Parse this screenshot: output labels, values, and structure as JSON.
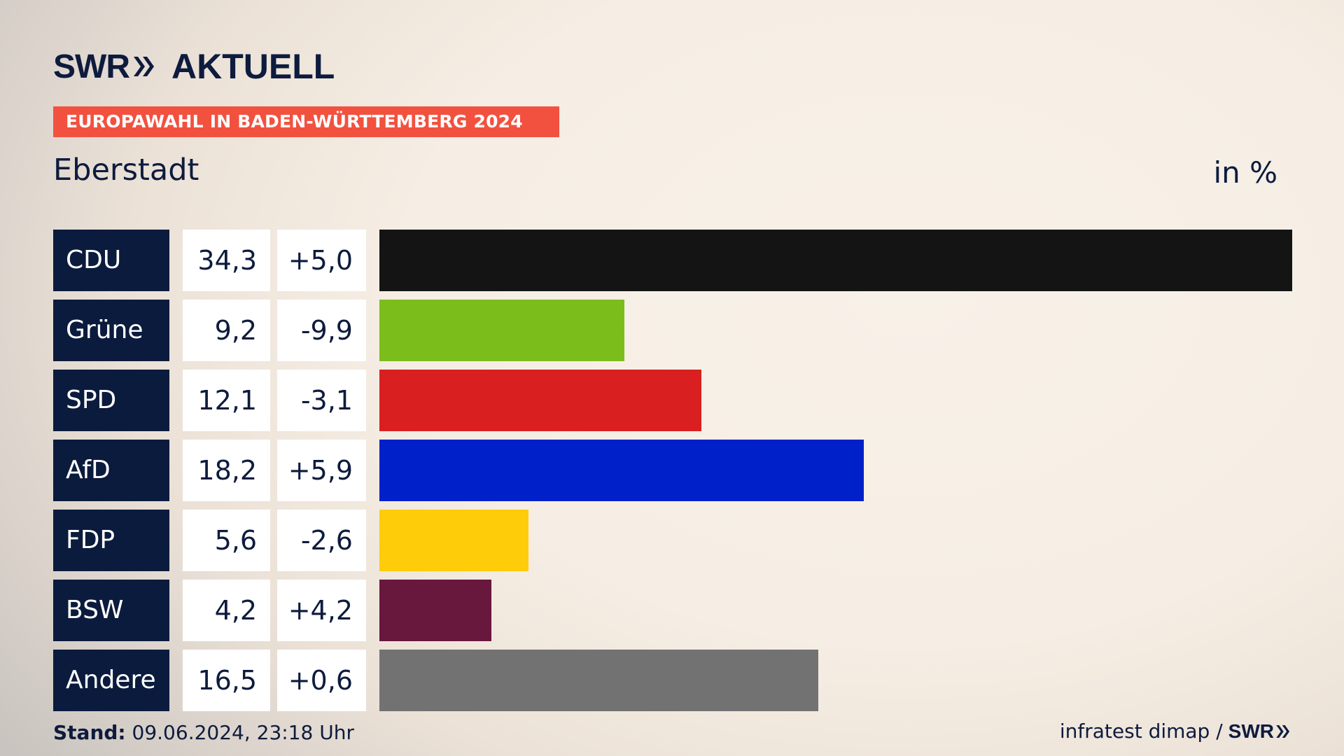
{
  "header": {
    "brand": "SWR",
    "brand_product": "AKTUELL",
    "banner": "EUROPAWAHL IN BADEN-WÜRTTEMBERG 2024",
    "place": "Eberstadt",
    "unit": "in %"
  },
  "footer": {
    "stand_label": "Stand:",
    "stand_value": "09.06.2024, 23:18 Uhr",
    "source": "infratest dimap /",
    "source_brand": "SWR"
  },
  "icons": [
    "chevron-double-right-icon"
  ],
  "colors": {
    "navy": "#0b1b3d",
    "banner": "#f2513f"
  },
  "chart_data": {
    "type": "bar",
    "orientation": "horizontal",
    "title": "Eberstadt",
    "unit": "in %",
    "categories": [
      "CDU",
      "Grüne",
      "SPD",
      "AfD",
      "FDP",
      "BSW",
      "Andere"
    ],
    "values": [
      34.3,
      9.2,
      12.1,
      18.2,
      5.6,
      4.2,
      16.5
    ],
    "value_labels": [
      "34,3",
      "9,2",
      "12,1",
      "18,2",
      "5,6",
      "4,2",
      "16,5"
    ],
    "changes": [
      5.0,
      -9.9,
      -3.1,
      5.9,
      -2.6,
      4.2,
      0.6
    ],
    "change_labels": [
      "+5,0",
      "-9,9",
      "-3,1",
      "+5,9",
      "-2,6",
      "+4,2",
      "+0,6"
    ],
    "colors": [
      "#141414",
      "#7bbd1b",
      "#d91f1f",
      "#0020c9",
      "#ffcc0a",
      "#68173d",
      "#727272"
    ],
    "xlim": [
      0,
      34.3
    ],
    "grid": false,
    "legend": "none"
  }
}
